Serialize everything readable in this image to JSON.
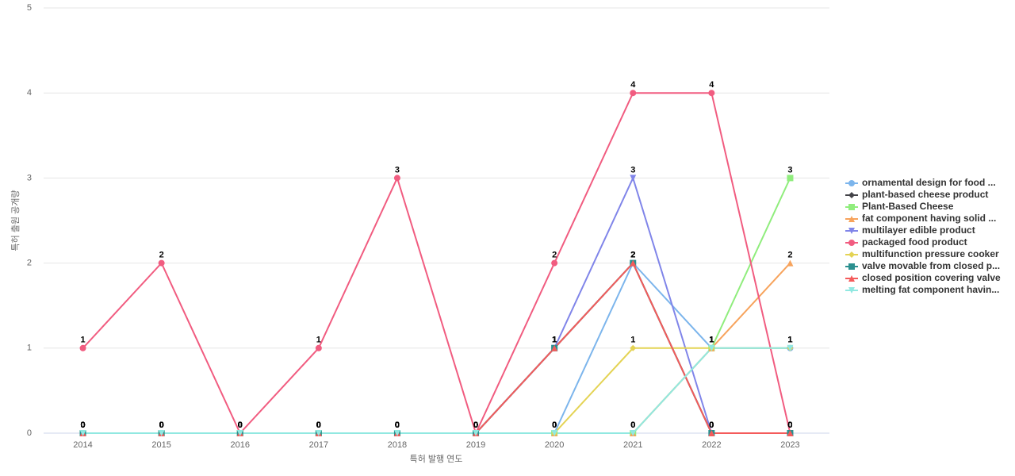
{
  "chart_data": {
    "type": "line",
    "x_label": "특허 발행 연도",
    "y_label": "특허 출원 공개량",
    "categories": [
      "2014",
      "2015",
      "2016",
      "2017",
      "2018",
      "2019",
      "2020",
      "2021",
      "2022",
      "2023"
    ],
    "ylim": [
      0,
      5
    ],
    "yticks": [
      0,
      1,
      2,
      3,
      4,
      5
    ],
    "grid": true,
    "legend": "right",
    "series": [
      {
        "name": "ornamental design for food ...",
        "color": "#7cb5ec",
        "marker": "circle",
        "values": [
          0,
          0,
          0,
          0,
          0,
          0,
          0,
          2,
          1,
          1
        ]
      },
      {
        "name": "plant-based cheese product",
        "color": "#434348",
        "marker": "diamond",
        "values": [
          0,
          0,
          0,
          0,
          0,
          0,
          1,
          2,
          0,
          0
        ]
      },
      {
        "name": "Plant-Based Cheese",
        "color": "#90ed7d",
        "marker": "square",
        "values": [
          0,
          0,
          0,
          0,
          0,
          0,
          0,
          0,
          1,
          3
        ]
      },
      {
        "name": "fat component having solid ...",
        "color": "#f7a35c",
        "marker": "triangle",
        "values": [
          0,
          0,
          0,
          0,
          0,
          0,
          0,
          0,
          1,
          2
        ]
      },
      {
        "name": "multilayer edible product",
        "color": "#8085e9",
        "marker": "triangle-down",
        "values": [
          0,
          0,
          0,
          0,
          0,
          0,
          1,
          3,
          0,
          0
        ]
      },
      {
        "name": "packaged food product",
        "color": "#f15c80",
        "marker": "circle",
        "values": [
          1,
          2,
          0,
          1,
          3,
          0,
          2,
          4,
          4,
          0
        ]
      },
      {
        "name": "multifunction pressure cooker",
        "color": "#e4d354",
        "marker": "diamond",
        "values": [
          0,
          0,
          0,
          0,
          0,
          0,
          0,
          1,
          1,
          1
        ]
      },
      {
        "name": "valve movable from closed p...",
        "color": "#2b908f",
        "marker": "square",
        "values": [
          0,
          0,
          0,
          0,
          0,
          0,
          1,
          2,
          0,
          0
        ]
      },
      {
        "name": "closed position covering valve",
        "color": "#f45b5b",
        "marker": "triangle",
        "values": [
          0,
          0,
          0,
          0,
          0,
          0,
          1,
          2,
          0,
          0
        ]
      },
      {
        "name": "melting fat component havin...",
        "color": "#91e8e1",
        "marker": "triangle-down",
        "values": [
          0,
          0,
          0,
          0,
          0,
          0,
          0,
          0,
          1,
          1
        ]
      }
    ]
  }
}
